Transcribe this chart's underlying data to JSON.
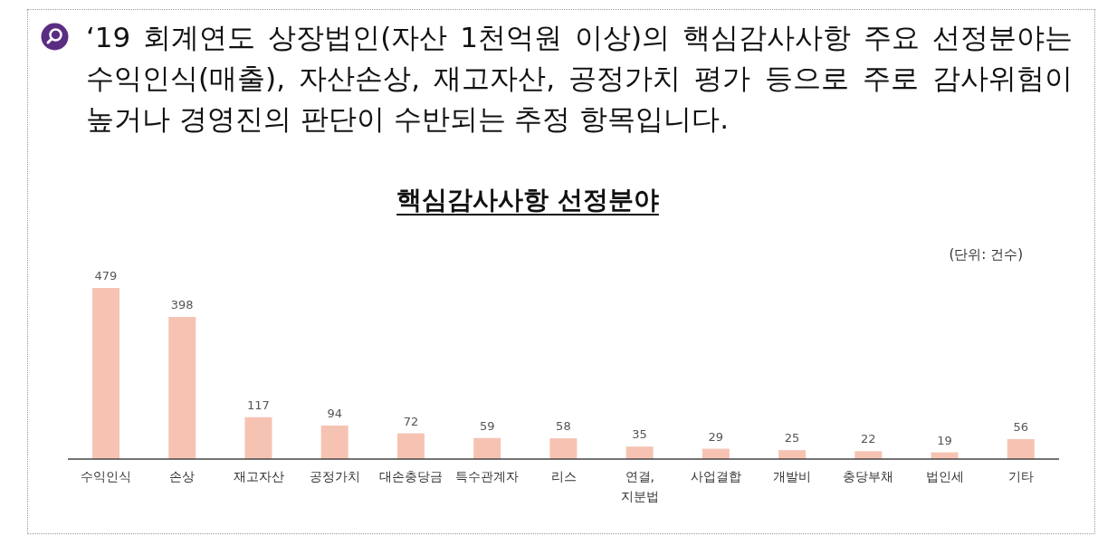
{
  "chart_data": {
    "type": "bar",
    "title": "핵심감사사항 선정분야",
    "categories": [
      "수익인식",
      "손상",
      "재고자산",
      "공정가치",
      "대손충당금",
      "특수관계자",
      "리스",
      "연결, 지분법",
      "사업결합",
      "개발비",
      "충당부채",
      "법인세",
      "기타"
    ],
    "values": [
      479,
      398,
      117,
      94,
      72,
      59,
      58,
      35,
      29,
      25,
      22,
      19,
      56
    ],
    "color": "#f6c3b3",
    "data_labels": true,
    "annotations": [
      "‘19 회계연도 상장법인(자산 1천억원 이상)의 핵심감사사항 주요 선정분야는 수익인식(매출), 자산손상, 재고자산, 공정가치 평가 등으로 주로 감사위험이 높거나 경영진의 판단이 수반되는 추정 항목입니다.",
      "(단위: 건수)"
    ]
  }
}
